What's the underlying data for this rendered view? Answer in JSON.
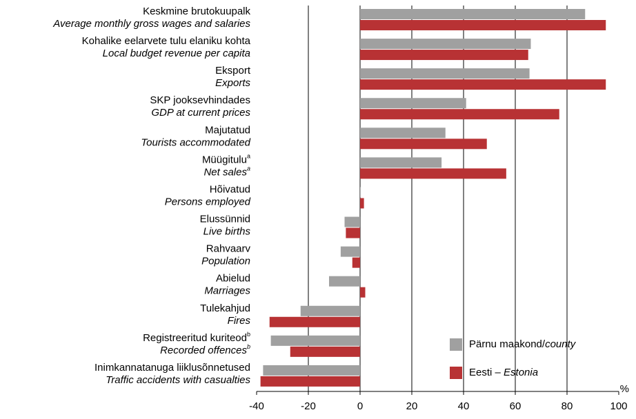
{
  "chart_data": {
    "type": "bar",
    "orientation": "horizontal",
    "categories": [
      {
        "label": "Keskmine brutokuupalk",
        "label_en": "Average monthly gross wages and salaries"
      },
      {
        "label": "Kohalike eelarvete tulu elaniku kohta",
        "label_en": "Local budget revenue per capita"
      },
      {
        "label": "Eksport",
        "label_en": "Exports"
      },
      {
        "label": "SKP jooksevhindades",
        "label_en": "GDP at current prices"
      },
      {
        "label": "Majutatud",
        "label_en": "Tourists accommodated"
      },
      {
        "label": "Müügitulu",
        "label_en": "Net sales",
        "note": "a"
      },
      {
        "label": "Hõivatud",
        "label_en": "Persons employed"
      },
      {
        "label": "Elussünnid",
        "label_en": "Live births"
      },
      {
        "label": "Rahvaarv",
        "label_en": "Population"
      },
      {
        "label": "Abielud",
        "label_en": "Marriages"
      },
      {
        "label": "Tulekahjud",
        "label_en": "Fires"
      },
      {
        "label": "Registreeritud kuriteod",
        "label_en": "Recorded offences",
        "note": "b"
      },
      {
        "label": "Inimkannatanuga liiklusõnnetused",
        "label_en": "Traffic accidents with casualties"
      }
    ],
    "series": [
      {
        "name": "Pärnu maakond/",
        "name_italic": "county",
        "color": "#a0a0a0",
        "values": [
          87,
          66,
          65.5,
          41,
          33,
          31.5,
          0.2,
          -6,
          -7.5,
          -12,
          -23,
          -34.5,
          -37.5
        ]
      },
      {
        "name": "Eesti – ",
        "name_italic": "Estonia",
        "color": "#b83234",
        "values": [
          95,
          65,
          95,
          77,
          49,
          56.5,
          1.5,
          -5.5,
          -3,
          2,
          -35,
          -27,
          -38.5
        ]
      }
    ],
    "xlabel": "%",
    "xlim": [
      -40,
      100
    ],
    "xticks": [
      -40,
      -20,
      0,
      20,
      40,
      60,
      80,
      100
    ],
    "grid": true,
    "legend": "lower right"
  }
}
